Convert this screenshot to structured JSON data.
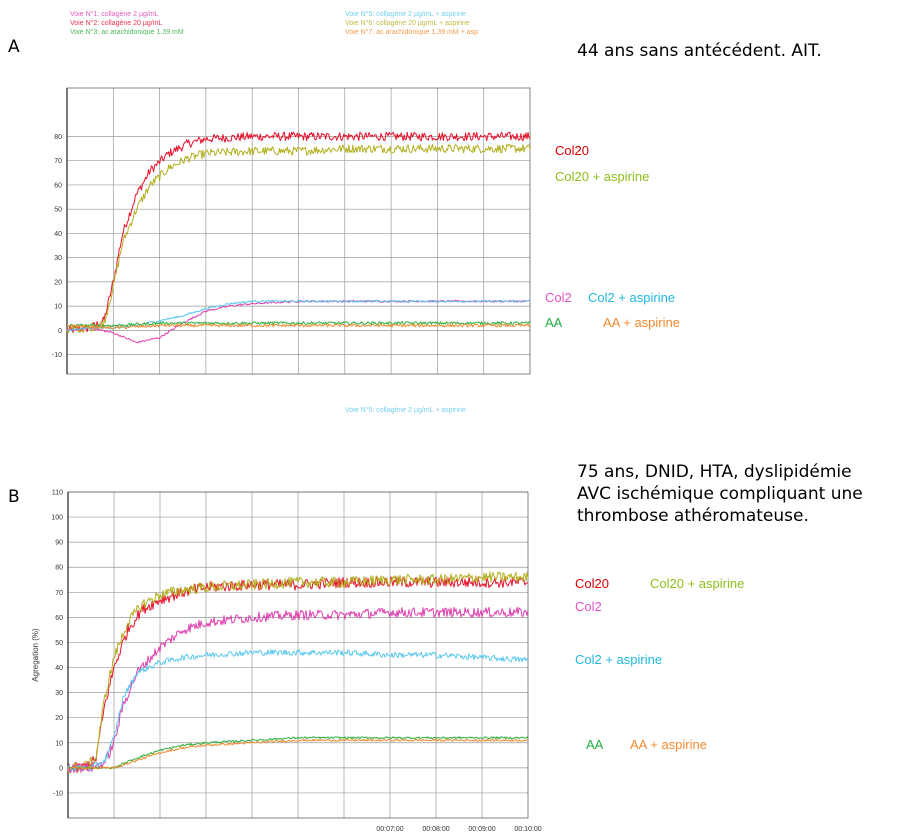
{
  "panels": {
    "a": {
      "letter": "A",
      "description": "44 ans sans antécédent. AIT.",
      "header_left": [
        "Voie N°1: collagène 2 µg/mL",
        "Voie N°2: collagène 20 µg/mL",
        "Voie N°3: ac arachidonique 1.39 mM"
      ],
      "header_right": [
        "Voie N°5: collagène 2 µg/mL + aspirine",
        "Voie N°6: collagène 20 µg/mL + aspirine",
        "Voie N°7: ac arachidonique 1.39 mM + asp"
      ]
    },
    "b": {
      "letter": "B",
      "description_lines": [
        "75 ans, DNID, HTA, dyslipidémie",
        "AVC ischémique compliquant une",
        "thrombose athéromateuse."
      ],
      "header_right": [
        "Voie N°5: collagène 2 µg/mL + aspirine"
      ]
    }
  },
  "legend_labels": {
    "a_col20": "Col20",
    "a_col20_asp": "Col20 + aspirine",
    "a_col2": "Col2",
    "a_col2_asp": "Col2 + aspirine",
    "a_aa": "AA",
    "a_aa_asp": "AA + aspirine",
    "b_col20": "Col20",
    "b_col20_asp": "Col20 + aspirine",
    "b_col2": "Col2",
    "b_col2_asp": "Col2 + aspirine",
    "b_aa": "AA",
    "b_aa_asp": "AA + aspirine"
  },
  "colors": {
    "col20": "#e8102a",
    "col20_asp": "#b3b020",
    "col2": "#e040b0",
    "col2_asp": "#5ac8ee",
    "aa": "#2fae3e",
    "aa_asp": "#f08a2c",
    "label_col20": "#e00000",
    "label_col20_asp": "#8fbe1a",
    "label_col2": "#e850c8",
    "label_col2_asp": "#20b8e0",
    "label_aa": "#20b040",
    "label_aa_asp": "#f58a30",
    "grid": "#9a9a9a"
  },
  "chart_data": [
    {
      "id": "A",
      "type": "line",
      "title": "",
      "xlabel": "",
      "ylabel": "",
      "ylim": [
        -18,
        100
      ],
      "xlim": [
        0,
        10
      ],
      "yticks": [
        -10,
        0,
        10,
        20,
        30,
        40,
        50,
        60,
        70,
        80
      ],
      "xtick_labels": [],
      "grid": true,
      "series": [
        {
          "name": "Col20",
          "color_key": "col20",
          "noise": 1.8,
          "x": [
            0,
            0.5,
            0.8,
            1.0,
            1.2,
            1.5,
            1.8,
            2.2,
            2.6,
            3.0,
            4.0,
            5.0,
            6.0,
            7.0,
            8.0,
            9.0,
            10.0
          ],
          "y": [
            0,
            1,
            4,
            20,
            40,
            56,
            66,
            73,
            77,
            79,
            80,
            80,
            80,
            80,
            80,
            80,
            80
          ]
        },
        {
          "name": "Col20 + aspirine",
          "color_key": "col20_asp",
          "noise": 1.8,
          "x": [
            0,
            0.5,
            0.8,
            1.0,
            1.2,
            1.5,
            1.8,
            2.2,
            2.6,
            3.0,
            4.0,
            5.0,
            6.0,
            7.0,
            8.0,
            9.0,
            10.0
          ],
          "y": [
            0,
            1,
            3,
            18,
            36,
            50,
            60,
            67,
            71,
            73,
            74,
            74,
            75,
            75,
            75,
            75,
            75
          ]
        },
        {
          "name": "Col2",
          "color_key": "col2",
          "noise": 0.4,
          "x": [
            0,
            0.5,
            1.0,
            1.5,
            2.0,
            2.5,
            3.0,
            3.5,
            4.0,
            5.0,
            6.0,
            7.0,
            8.0,
            9.0,
            10.0
          ],
          "y": [
            0,
            1,
            -1,
            -5,
            -3,
            3,
            8,
            10,
            11,
            12,
            12,
            12,
            12,
            12,
            12
          ]
        },
        {
          "name": "Col2 + aspirine",
          "color_key": "col2_asp",
          "noise": 0.4,
          "x": [
            0,
            0.5,
            1.0,
            1.5,
            2.0,
            2.5,
            3.0,
            3.5,
            4.0,
            5.0,
            6.0,
            7.0,
            8.0,
            9.0,
            10.0
          ],
          "y": [
            0,
            1,
            1,
            2,
            4,
            6,
            9,
            11,
            12,
            12,
            12,
            12,
            12,
            12,
            12
          ]
        },
        {
          "name": "AA",
          "color_key": "aa",
          "noise": 0.6,
          "x": [
            0,
            1,
            2,
            3,
            4,
            5,
            6,
            7,
            8,
            9,
            10
          ],
          "y": [
            2,
            2,
            3,
            3,
            3,
            3,
            3,
            3,
            3,
            3,
            3
          ]
        },
        {
          "name": "AA + aspirine",
          "color_key": "aa_asp",
          "noise": 0.6,
          "x": [
            0,
            1,
            2,
            3,
            4,
            5,
            6,
            7,
            8,
            9,
            10
          ],
          "y": [
            2,
            1,
            2,
            2,
            2,
            2,
            2,
            2,
            2,
            2,
            2
          ]
        }
      ]
    },
    {
      "id": "B",
      "type": "line",
      "title": "",
      "xlabel": "",
      "ylabel": "Agregation (%)",
      "ylim": [
        -20,
        110
      ],
      "xlim": [
        0,
        10
      ],
      "yticks": [
        -10,
        0,
        10,
        20,
        30,
        40,
        50,
        60,
        70,
        80,
        90,
        100,
        110
      ],
      "xtick_labels": [
        "00:07:00",
        "00:08:00",
        "00:09:00",
        "00:10:00"
      ],
      "xtick_positions": [
        7,
        8,
        9,
        10
      ],
      "grid": true,
      "series": [
        {
          "name": "Col20",
          "color_key": "col20",
          "noise": 2.2,
          "x": [
            0,
            0.3,
            0.6,
            0.8,
            1.0,
            1.3,
            1.6,
            2.0,
            2.5,
            3.0,
            4.0,
            5.0,
            6.0,
            7.0,
            8.0,
            9.0,
            10.0
          ],
          "y": [
            0,
            0,
            3,
            25,
            40,
            55,
            63,
            67,
            70,
            72,
            73,
            73,
            74,
            74,
            74,
            74,
            74
          ]
        },
        {
          "name": "Col20 + aspirine",
          "color_key": "col20_asp",
          "noise": 2.2,
          "x": [
            0,
            0.3,
            0.6,
            0.8,
            1.0,
            1.3,
            1.6,
            2.0,
            2.5,
            3.0,
            4.0,
            5.0,
            6.0,
            7.0,
            8.0,
            9.0,
            10.0
          ],
          "y": [
            0,
            0,
            3,
            28,
            44,
            58,
            65,
            69,
            71,
            72,
            73,
            74,
            74,
            75,
            75,
            76,
            76
          ]
        },
        {
          "name": "Col2",
          "color_key": "col2",
          "noise": 2.0,
          "x": [
            0,
            0.5,
            0.8,
            1.0,
            1.2,
            1.5,
            2.0,
            2.5,
            3.0,
            4.0,
            5.0,
            6.0,
            7.0,
            8.0,
            9.0,
            10.0
          ],
          "y": [
            0,
            0,
            2,
            10,
            25,
            38,
            48,
            55,
            58,
            60,
            61,
            61,
            62,
            62,
            62,
            62
          ]
        },
        {
          "name": "Col2 + aspirine",
          "color_key": "col2_asp",
          "noise": 1.2,
          "x": [
            0,
            0.5,
            0.8,
            1.0,
            1.2,
            1.5,
            2.0,
            2.5,
            3.0,
            4.0,
            5.0,
            6.0,
            7.0,
            8.0,
            9.0,
            10.0
          ],
          "y": [
            0,
            0,
            3,
            12,
            28,
            38,
            42,
            44,
            45,
            46,
            46,
            46,
            45,
            45,
            44,
            43
          ]
        },
        {
          "name": "AA",
          "color_key": "aa",
          "noise": 0.4,
          "x": [
            0,
            1.0,
            1.5,
            2.0,
            2.5,
            3.0,
            4.0,
            5.0,
            6.0,
            7.0,
            8.0,
            9.0,
            10.0
          ],
          "y": [
            0,
            0,
            4,
            7,
            9,
            10,
            11,
            12,
            12,
            12,
            12,
            12,
            12
          ]
        },
        {
          "name": "AA + aspirine",
          "color_key": "aa_asp",
          "noise": 0.4,
          "x": [
            0,
            1.0,
            1.5,
            2.0,
            2.5,
            3.0,
            4.0,
            5.0,
            6.0,
            7.0,
            8.0,
            9.0,
            10.0
          ],
          "y": [
            0,
            0,
            3,
            6,
            8,
            9,
            10,
            11,
            11,
            11,
            11,
            11,
            11
          ]
        }
      ]
    }
  ]
}
